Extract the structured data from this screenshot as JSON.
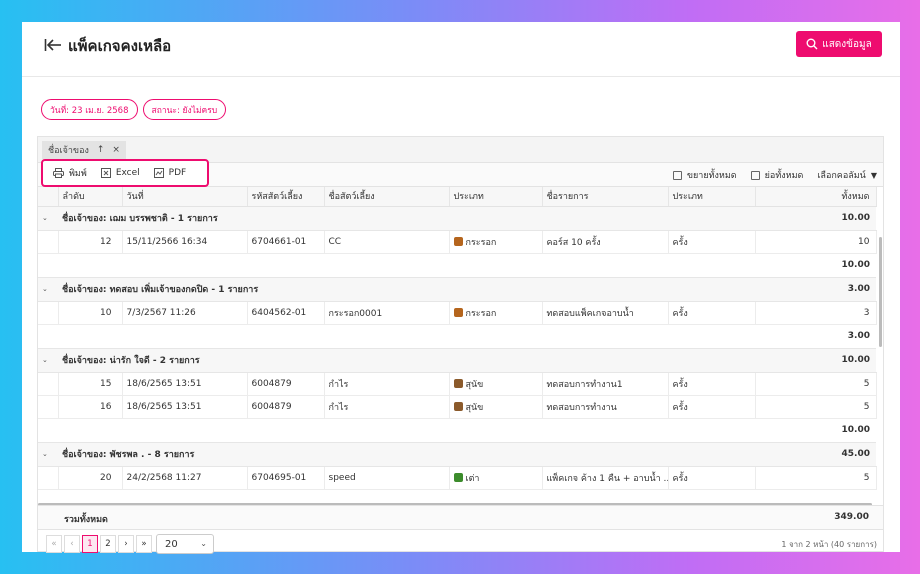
{
  "header": {
    "title": "แพ็คเกจคงเหลือ",
    "show_button": "แสดงข้อมูล"
  },
  "filters": [
    "วันที่: 23 เม.ย. 2568",
    "สถานะ: ยังไม่ครบ"
  ],
  "group_by": {
    "label": "ชื่อเจ้าของ",
    "sort_icon": "↑",
    "remove_icon": "×"
  },
  "toolbar": {
    "print": "พิมพ์",
    "excel": "Excel",
    "pdf": "PDF",
    "expand_all": "ขยายทั้งหมด",
    "collapse_all": "ย่อทั้งหมด",
    "choose_columns": "เลือกคอลัมน์"
  },
  "columns": [
    "ลำดับ",
    "วันที่",
    "รหัสสัตว์เลี้ยง",
    "ชื่อสัตว์เลี้ยง",
    "ประเภท",
    "ชื่อรายการ",
    "ประเภท",
    "ทั้งหมด"
  ],
  "groups": [
    {
      "title": "ชื่อเจ้าของ: เฌม บรรพชาติ - 1 รายการ",
      "total": "10.00",
      "subtotal": "10.00",
      "rows": [
        {
          "no": "12",
          "date": "15/11/2566 16:34",
          "pet_code": "6704661-01",
          "pet_name": "CC",
          "pet_type": "กระรอก",
          "pet_icon": "squirrel-icon",
          "item": "คอร์ส 10 ครั้ง",
          "unit": "ครั้ง",
          "total": "10"
        }
      ]
    },
    {
      "title": "ชื่อเจ้าของ: ทดสอบ เพิ่มเจ้าของกดปิด - 1 รายการ",
      "total": "3.00",
      "subtotal": "3.00",
      "rows": [
        {
          "no": "10",
          "date": "7/3/2567 11:26",
          "pet_code": "6404562-01",
          "pet_name": "กระรอก0001",
          "pet_type": "กระรอก",
          "pet_icon": "squirrel-icon",
          "item": "ทดสอบแพ็คเกจอาบน้ำ",
          "unit": "ครั้ง",
          "total": "3"
        }
      ]
    },
    {
      "title": "ชื่อเจ้าของ: น่ารัก ใจดี - 2 รายการ",
      "total": "10.00",
      "subtotal": "10.00",
      "rows": [
        {
          "no": "15",
          "date": "18/6/2565 13:51",
          "pet_code": "6004879",
          "pet_name": "กำไร",
          "pet_type": "สุนัข",
          "pet_icon": "dog-icon",
          "item": "ทดสอบการทำงาน1",
          "unit": "ครั้ง",
          "total": "5"
        },
        {
          "no": "16",
          "date": "18/6/2565 13:51",
          "pet_code": "6004879",
          "pet_name": "กำไร",
          "pet_type": "สุนัข",
          "pet_icon": "dog-icon",
          "item": "ทดสอบการทำงาน",
          "unit": "ครั้ง",
          "total": "5"
        }
      ]
    },
    {
      "title": "ชื่อเจ้าของ: พัชรพล . - 8 รายการ",
      "total": "45.00",
      "subtotal": "",
      "rows": [
        {
          "no": "20",
          "date": "24/2/2568 11:27",
          "pet_code": "6704695-01",
          "pet_name": "speed",
          "pet_type": "เต่า",
          "pet_icon": "turtle-icon",
          "item": "แพ็คเกจ ค้าง 1 คืน + อาบน้ำ ...",
          "unit": "ครั้ง",
          "total": "5"
        }
      ]
    }
  ],
  "grand_total": {
    "label": "รวมทั้งหมด",
    "value": "349.00"
  },
  "pager": {
    "first": "«",
    "prev": "‹",
    "pages": [
      "1",
      "2"
    ],
    "next": "›",
    "last": "»",
    "page_size": "20",
    "info": "1 จาก 2 หน้า (40 รายการ)"
  },
  "colors": {
    "accent": "#ee0c6f",
    "squirrel": "#b5651d",
    "dog": "#8b5a2b",
    "turtle": "#3c8c2c"
  }
}
